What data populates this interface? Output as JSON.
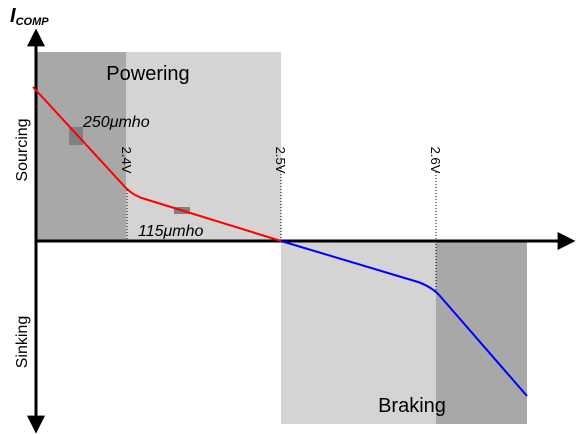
{
  "axis_label": {
    "main": "I",
    "subscript": "COMP"
  },
  "side_labels": {
    "upper": "Sourcing",
    "lower": "Sinking"
  },
  "regions": {
    "upper": "Powering",
    "lower": "Braking"
  },
  "slopes": {
    "steep": "250μmho",
    "shallow": "115μmho"
  },
  "voltages": [
    "2.4V",
    "2.5V",
    "2.6V"
  ]
}
